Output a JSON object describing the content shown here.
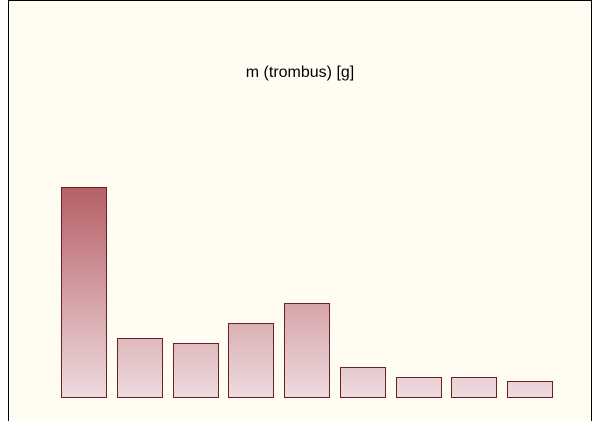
{
  "chart_data": {
    "type": "bar",
    "title": "m (trombus) [g]",
    "categories": [
      null,
      null,
      null,
      null,
      null,
      null,
      null,
      null,
      null
    ],
    "values": [
      210,
      59,
      54,
      74,
      94,
      30,
      20,
      20,
      16
    ],
    "color": "#b65f66",
    "ylim": [
      0,
      210
    ]
  }
}
